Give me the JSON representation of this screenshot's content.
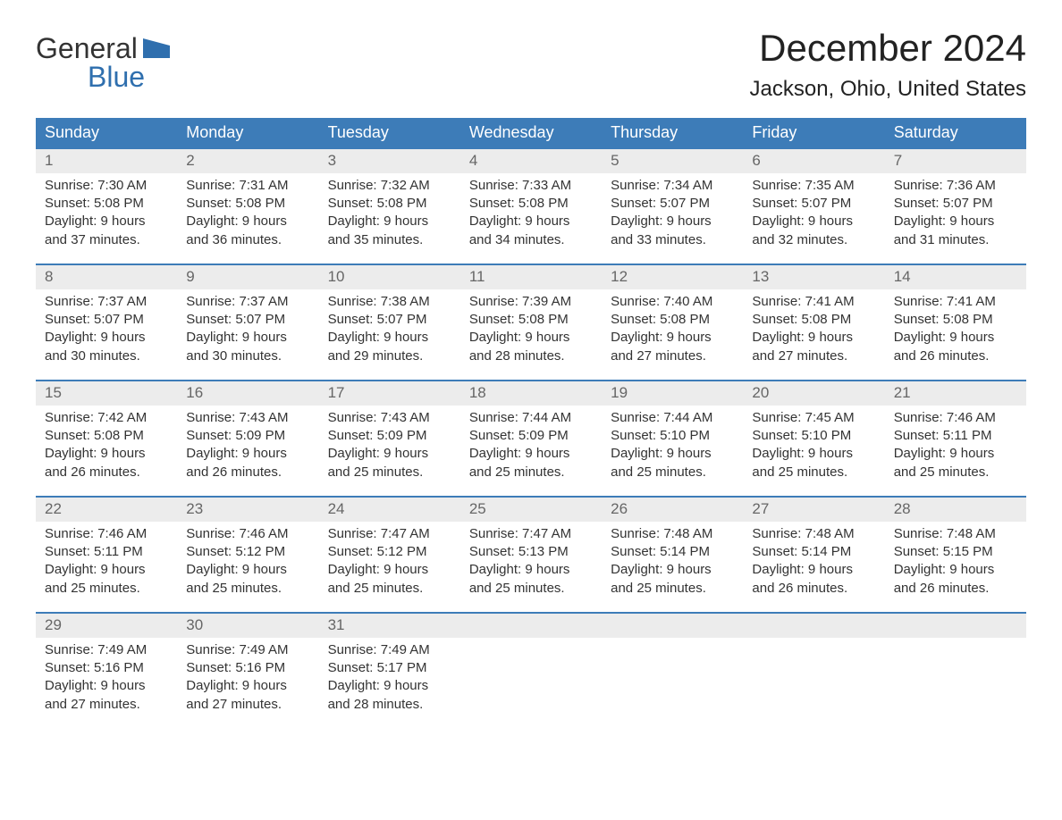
{
  "brand": {
    "line1": "General",
    "line2": "Blue"
  },
  "title": "December 2024",
  "location": "Jackson, Ohio, United States",
  "colors": {
    "header_bg": "#3d7cb8",
    "header_text": "#ffffff",
    "daynum_bg": "#ececec",
    "week_border": "#3d7cb8",
    "brand_blue": "#2f6fae",
    "text": "#333333"
  },
  "day_headers": [
    "Sunday",
    "Monday",
    "Tuesday",
    "Wednesday",
    "Thursday",
    "Friday",
    "Saturday"
  ],
  "weeks": [
    [
      {
        "n": "1",
        "sunrise": "Sunrise: 7:30 AM",
        "sunset": "Sunset: 5:08 PM",
        "d1": "Daylight: 9 hours",
        "d2": "and 37 minutes."
      },
      {
        "n": "2",
        "sunrise": "Sunrise: 7:31 AM",
        "sunset": "Sunset: 5:08 PM",
        "d1": "Daylight: 9 hours",
        "d2": "and 36 minutes."
      },
      {
        "n": "3",
        "sunrise": "Sunrise: 7:32 AM",
        "sunset": "Sunset: 5:08 PM",
        "d1": "Daylight: 9 hours",
        "d2": "and 35 minutes."
      },
      {
        "n": "4",
        "sunrise": "Sunrise: 7:33 AM",
        "sunset": "Sunset: 5:08 PM",
        "d1": "Daylight: 9 hours",
        "d2": "and 34 minutes."
      },
      {
        "n": "5",
        "sunrise": "Sunrise: 7:34 AM",
        "sunset": "Sunset: 5:07 PM",
        "d1": "Daylight: 9 hours",
        "d2": "and 33 minutes."
      },
      {
        "n": "6",
        "sunrise": "Sunrise: 7:35 AM",
        "sunset": "Sunset: 5:07 PM",
        "d1": "Daylight: 9 hours",
        "d2": "and 32 minutes."
      },
      {
        "n": "7",
        "sunrise": "Sunrise: 7:36 AM",
        "sunset": "Sunset: 5:07 PM",
        "d1": "Daylight: 9 hours",
        "d2": "and 31 minutes."
      }
    ],
    [
      {
        "n": "8",
        "sunrise": "Sunrise: 7:37 AM",
        "sunset": "Sunset: 5:07 PM",
        "d1": "Daylight: 9 hours",
        "d2": "and 30 minutes."
      },
      {
        "n": "9",
        "sunrise": "Sunrise: 7:37 AM",
        "sunset": "Sunset: 5:07 PM",
        "d1": "Daylight: 9 hours",
        "d2": "and 30 minutes."
      },
      {
        "n": "10",
        "sunrise": "Sunrise: 7:38 AM",
        "sunset": "Sunset: 5:07 PM",
        "d1": "Daylight: 9 hours",
        "d2": "and 29 minutes."
      },
      {
        "n": "11",
        "sunrise": "Sunrise: 7:39 AM",
        "sunset": "Sunset: 5:08 PM",
        "d1": "Daylight: 9 hours",
        "d2": "and 28 minutes."
      },
      {
        "n": "12",
        "sunrise": "Sunrise: 7:40 AM",
        "sunset": "Sunset: 5:08 PM",
        "d1": "Daylight: 9 hours",
        "d2": "and 27 minutes."
      },
      {
        "n": "13",
        "sunrise": "Sunrise: 7:41 AM",
        "sunset": "Sunset: 5:08 PM",
        "d1": "Daylight: 9 hours",
        "d2": "and 27 minutes."
      },
      {
        "n": "14",
        "sunrise": "Sunrise: 7:41 AM",
        "sunset": "Sunset: 5:08 PM",
        "d1": "Daylight: 9 hours",
        "d2": "and 26 minutes."
      }
    ],
    [
      {
        "n": "15",
        "sunrise": "Sunrise: 7:42 AM",
        "sunset": "Sunset: 5:08 PM",
        "d1": "Daylight: 9 hours",
        "d2": "and 26 minutes."
      },
      {
        "n": "16",
        "sunrise": "Sunrise: 7:43 AM",
        "sunset": "Sunset: 5:09 PM",
        "d1": "Daylight: 9 hours",
        "d2": "and 26 minutes."
      },
      {
        "n": "17",
        "sunrise": "Sunrise: 7:43 AM",
        "sunset": "Sunset: 5:09 PM",
        "d1": "Daylight: 9 hours",
        "d2": "and 25 minutes."
      },
      {
        "n": "18",
        "sunrise": "Sunrise: 7:44 AM",
        "sunset": "Sunset: 5:09 PM",
        "d1": "Daylight: 9 hours",
        "d2": "and 25 minutes."
      },
      {
        "n": "19",
        "sunrise": "Sunrise: 7:44 AM",
        "sunset": "Sunset: 5:10 PM",
        "d1": "Daylight: 9 hours",
        "d2": "and 25 minutes."
      },
      {
        "n": "20",
        "sunrise": "Sunrise: 7:45 AM",
        "sunset": "Sunset: 5:10 PM",
        "d1": "Daylight: 9 hours",
        "d2": "and 25 minutes."
      },
      {
        "n": "21",
        "sunrise": "Sunrise: 7:46 AM",
        "sunset": "Sunset: 5:11 PM",
        "d1": "Daylight: 9 hours",
        "d2": "and 25 minutes."
      }
    ],
    [
      {
        "n": "22",
        "sunrise": "Sunrise: 7:46 AM",
        "sunset": "Sunset: 5:11 PM",
        "d1": "Daylight: 9 hours",
        "d2": "and 25 minutes."
      },
      {
        "n": "23",
        "sunrise": "Sunrise: 7:46 AM",
        "sunset": "Sunset: 5:12 PM",
        "d1": "Daylight: 9 hours",
        "d2": "and 25 minutes."
      },
      {
        "n": "24",
        "sunrise": "Sunrise: 7:47 AM",
        "sunset": "Sunset: 5:12 PM",
        "d1": "Daylight: 9 hours",
        "d2": "and 25 minutes."
      },
      {
        "n": "25",
        "sunrise": "Sunrise: 7:47 AM",
        "sunset": "Sunset: 5:13 PM",
        "d1": "Daylight: 9 hours",
        "d2": "and 25 minutes."
      },
      {
        "n": "26",
        "sunrise": "Sunrise: 7:48 AM",
        "sunset": "Sunset: 5:14 PM",
        "d1": "Daylight: 9 hours",
        "d2": "and 25 minutes."
      },
      {
        "n": "27",
        "sunrise": "Sunrise: 7:48 AM",
        "sunset": "Sunset: 5:14 PM",
        "d1": "Daylight: 9 hours",
        "d2": "and 26 minutes."
      },
      {
        "n": "28",
        "sunrise": "Sunrise: 7:48 AM",
        "sunset": "Sunset: 5:15 PM",
        "d1": "Daylight: 9 hours",
        "d2": "and 26 minutes."
      }
    ],
    [
      {
        "n": "29",
        "sunrise": "Sunrise: 7:49 AM",
        "sunset": "Sunset: 5:16 PM",
        "d1": "Daylight: 9 hours",
        "d2": "and 27 minutes."
      },
      {
        "n": "30",
        "sunrise": "Sunrise: 7:49 AM",
        "sunset": "Sunset: 5:16 PM",
        "d1": "Daylight: 9 hours",
        "d2": "and 27 minutes."
      },
      {
        "n": "31",
        "sunrise": "Sunrise: 7:49 AM",
        "sunset": "Sunset: 5:17 PM",
        "d1": "Daylight: 9 hours",
        "d2": "and 28 minutes."
      },
      {
        "empty": true
      },
      {
        "empty": true
      },
      {
        "empty": true
      },
      {
        "empty": true
      }
    ]
  ]
}
